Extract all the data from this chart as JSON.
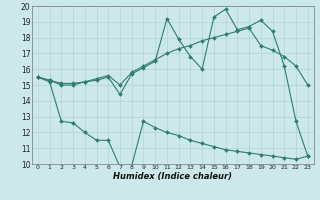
{
  "xlabel": "Humidex (Indice chaleur)",
  "x": [
    0,
    1,
    2,
    3,
    4,
    5,
    6,
    7,
    8,
    9,
    10,
    11,
    12,
    13,
    14,
    15,
    16,
    17,
    18,
    19,
    20,
    21,
    22,
    23
  ],
  "line1": [
    15.5,
    15.3,
    15.0,
    15.0,
    15.2,
    15.3,
    15.5,
    14.4,
    15.7,
    16.1,
    16.5,
    19.2,
    17.9,
    16.8,
    16.0,
    19.3,
    19.8,
    18.5,
    18.7,
    19.1,
    18.4,
    16.2,
    12.7,
    10.5
  ],
  "line2": [
    15.5,
    15.3,
    15.1,
    15.1,
    15.2,
    15.4,
    15.6,
    15.0,
    15.8,
    16.2,
    16.6,
    17.0,
    17.3,
    17.5,
    17.8,
    18.0,
    18.2,
    18.4,
    18.6,
    17.5,
    17.2,
    16.8,
    16.2,
    15.0
  ],
  "line3": [
    15.5,
    15.2,
    12.7,
    12.6,
    12.0,
    11.5,
    11.5,
    9.8,
    9.9,
    12.7,
    12.3,
    12.0,
    11.8,
    11.5,
    11.3,
    11.1,
    10.9,
    10.8,
    10.7,
    10.6,
    10.5,
    10.4,
    10.3,
    10.5
  ],
  "line_color": "#2e7d6e",
  "bg_color": "#cce8ea",
  "grid_color": "#b0d4d6",
  "ylim": [
    10,
    20
  ],
  "xlim": [
    -0.5,
    23.5
  ],
  "yticks": [
    10,
    11,
    12,
    13,
    14,
    15,
    16,
    17,
    18,
    19,
    20
  ],
  "xticks": [
    0,
    1,
    2,
    3,
    4,
    5,
    6,
    7,
    8,
    9,
    10,
    11,
    12,
    13,
    14,
    15,
    16,
    17,
    18,
    19,
    20,
    21,
    22,
    23
  ]
}
